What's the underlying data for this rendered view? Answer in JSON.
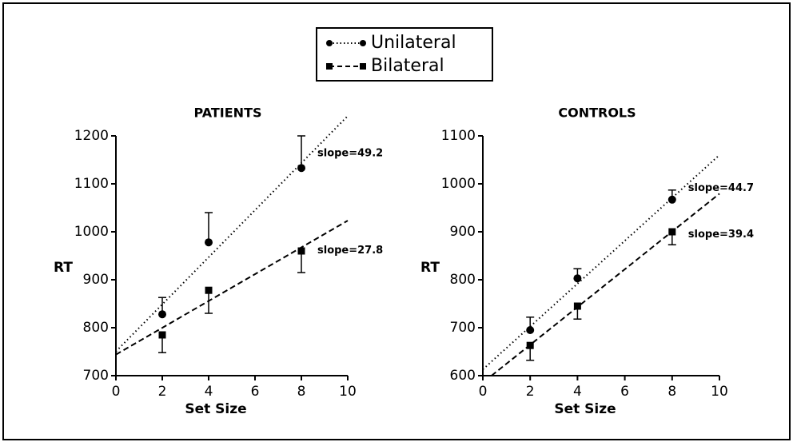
{
  "chart_data": [
    {
      "type": "scatter",
      "title": "PATIENTS",
      "xlabel": "Set Size",
      "ylabel": "RT",
      "xlim": [
        0,
        10
      ],
      "xticks": [
        0,
        2,
        4,
        6,
        8,
        10
      ],
      "ylim": [
        700,
        1200
      ],
      "yticks": [
        700,
        800,
        900,
        1000,
        1100,
        1200
      ],
      "series": [
        {
          "name": "Unilateral",
          "color": "#000000",
          "marker": "circle",
          "line": "dotted",
          "error_direction": "up",
          "x": [
            2,
            4,
            8
          ],
          "values": [
            828,
            978,
            1133
          ],
          "errors": [
            35,
            62,
            67
          ],
          "slope_label": "slope=49.2"
        },
        {
          "name": "Bilateral",
          "color": "#000000",
          "marker": "square",
          "line": "dashed",
          "error_direction": "down",
          "x": [
            2,
            4,
            8
          ],
          "values": [
            785,
            878,
            960
          ],
          "errors": [
            37,
            48,
            45
          ],
          "slope_label": "slope=27.8"
        }
      ]
    },
    {
      "type": "scatter",
      "title": "CONTROLS",
      "xlabel": "Set Size",
      "ylabel": "RT",
      "xlim": [
        0,
        10
      ],
      "xticks": [
        0,
        2,
        4,
        6,
        8,
        10
      ],
      "ylim": [
        600,
        1100
      ],
      "yticks": [
        600,
        700,
        800,
        900,
        1000,
        1100
      ],
      "series": [
        {
          "color": "#000000",
          "marker": "circle",
          "line": "dotted",
          "error_direction": "up",
          "x": [
            2,
            4,
            8
          ],
          "values": [
            695,
            803,
            967
          ],
          "errors": [
            27,
            20,
            20
          ],
          "slope_label": "slope=44.7"
        },
        {
          "color": "#000000",
          "marker": "square",
          "line": "dashed",
          "error_direction": "down",
          "x": [
            2,
            4,
            8
          ],
          "values": [
            663,
            745,
            900
          ],
          "errors": [
            31,
            27,
            27
          ],
          "slope_label": "slope=39.4"
        }
      ]
    }
  ]
}
